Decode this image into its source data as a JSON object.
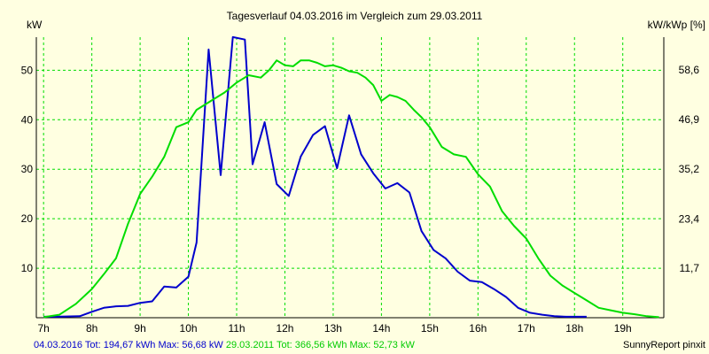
{
  "chart_data": {
    "type": "line",
    "title": "Tagesverlauf 04.03.2016 im Vergleich zum 29.03.2011",
    "ylabel_left": "kW",
    "ylabel_right": "kW/kWp [%]",
    "xlim": [
      6.85,
      19.85
    ],
    "ylim": [
      0,
      56.68
    ],
    "right_axis_ticks": [
      "11,7",
      "23,4",
      "35,2",
      "46,9",
      "58,6"
    ],
    "left_axis_ticks": [
      "10",
      "20",
      "30",
      "40",
      "50"
    ],
    "x_ticks": [
      "7h",
      "8h",
      "9h",
      "10h",
      "11h",
      "12h",
      "13h",
      "14h",
      "15h",
      "16h",
      "17h",
      "18h",
      "19h"
    ],
    "grid": true,
    "series": [
      {
        "name": "04.03.2016",
        "color": "#0000cc",
        "x": [
          7.0,
          7.25,
          7.75,
          8.0,
          8.25,
          8.5,
          8.75,
          9.0,
          9.25,
          9.5,
          9.75,
          10.0,
          10.17,
          10.42,
          10.67,
          10.92,
          11.17,
          11.33,
          11.58,
          11.83,
          12.08,
          12.33,
          12.58,
          12.83,
          13.08,
          13.33,
          13.58,
          13.83,
          14.08,
          14.33,
          14.58,
          14.83,
          15.08,
          15.33,
          15.58,
          15.83,
          16.08,
          16.33,
          16.58,
          16.83,
          17.08,
          17.33,
          17.58,
          17.83,
          18.08,
          18.25
        ],
        "values": [
          0.2,
          0.2,
          0.3,
          1.2,
          2.0,
          2.3,
          2.4,
          3.0,
          3.3,
          6.3,
          6.1,
          8.3,
          15.2,
          54.2,
          28.8,
          56.7,
          56.2,
          31.0,
          39.5,
          27.0,
          24.6,
          32.6,
          36.9,
          38.7,
          30.2,
          40.9,
          33.0,
          29.2,
          26.1,
          27.2,
          25.3,
          17.5,
          13.7,
          12.0,
          9.3,
          7.5,
          7.2,
          5.8,
          4.2,
          2.0,
          1.0,
          0.6,
          0.3,
          0.2,
          0.2,
          0.2
        ]
      },
      {
        "name": "29.03.2011",
        "color": "#00dd00",
        "x": [
          7.0,
          7.33,
          7.67,
          8.0,
          8.25,
          8.5,
          8.75,
          9.0,
          9.25,
          9.5,
          9.75,
          10.0,
          10.17,
          10.5,
          10.75,
          11.0,
          11.25,
          11.5,
          11.67,
          11.83,
          12.0,
          12.17,
          12.33,
          12.5,
          12.67,
          12.83,
          13.0,
          13.17,
          13.33,
          13.5,
          13.67,
          13.83,
          14.0,
          14.17,
          14.33,
          14.5,
          14.67,
          14.83,
          15.0,
          15.25,
          15.5,
          15.75,
          16.0,
          16.25,
          16.5,
          16.75,
          17.0,
          17.25,
          17.5,
          17.75,
          18.0,
          18.25,
          18.5,
          18.75,
          19.0,
          19.25,
          19.5,
          19.75
        ],
        "values": [
          0.1,
          0.6,
          2.8,
          5.8,
          8.8,
          12.0,
          19.0,
          25.0,
          28.5,
          32.5,
          38.5,
          39.5,
          42.0,
          44.0,
          45.5,
          47.5,
          49.0,
          48.5,
          50.0,
          52.0,
          51.0,
          50.8,
          52.0,
          52.0,
          51.5,
          50.8,
          51.0,
          50.5,
          49.8,
          49.5,
          48.5,
          47.0,
          43.8,
          45.0,
          44.6,
          43.8,
          42.0,
          40.5,
          38.5,
          34.5,
          33.0,
          32.5,
          29.0,
          26.5,
          21.5,
          18.5,
          16.0,
          12.0,
          8.5,
          6.5,
          5.0,
          3.5,
          2.0,
          1.5,
          1.0,
          0.7,
          0.3,
          0.1
        ]
      }
    ]
  },
  "footer": {
    "prefix": "04.03.2016 Tot: 194,67 kWh Max: 56,68 kW",
    "suffix": " 29.03.2011 Tot: 366,56 kWh Max: 52,73 kW",
    "brand": "SunnyReport pinxit"
  },
  "colors": {
    "background": "#ffffe1",
    "grid": "#00dd00",
    "axis": "#000000"
  }
}
